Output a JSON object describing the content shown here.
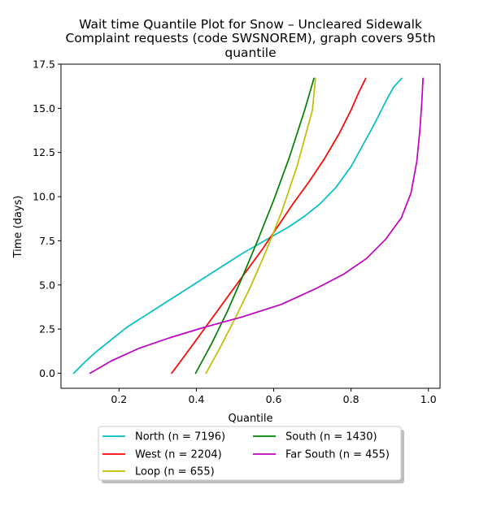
{
  "chart_data": {
    "type": "line",
    "title_lines": [
      "Wait time Quantile Plot for Snow – Uncleared Sidewalk",
      "Complaint  requests (code SWSNOREM), graph covers 95th",
      "quantile"
    ],
    "xlabel": "Quantile",
    "ylabel": "Time (days)",
    "xlim": [
      0.05,
      1.03
    ],
    "ylim": [
      -0.85,
      17.5
    ],
    "xticks": [
      0.2,
      0.4,
      0.6,
      0.8,
      1.0
    ],
    "xtick_labels": [
      "0.2",
      "0.4",
      "0.6",
      "0.8",
      "1.0"
    ],
    "yticks": [
      0.0,
      2.5,
      5.0,
      7.5,
      10.0,
      12.5,
      15.0,
      17.5
    ],
    "ytick_labels": [
      "0.0",
      "2.5",
      "5.0",
      "7.5",
      "10.0",
      "12.5",
      "15.0",
      "17.5"
    ],
    "grid": false,
    "legend_location": "below",
    "series": [
      {
        "name": "North (n = 7196)",
        "color": "#00bfbf",
        "x": [
          0.083,
          0.11,
          0.14,
          0.18,
          0.22,
          0.27,
          0.32,
          0.37,
          0.42,
          0.47,
          0.52,
          0.56,
          0.6,
          0.64,
          0.68,
          0.72,
          0.76,
          0.8,
          0.83,
          0.86,
          0.89,
          0.91,
          0.931
        ],
        "y": [
          0.0,
          0.6,
          1.2,
          1.9,
          2.6,
          3.3,
          4.0,
          4.7,
          5.4,
          6.1,
          6.8,
          7.3,
          7.8,
          8.3,
          8.9,
          9.6,
          10.5,
          11.7,
          12.9,
          14.1,
          15.4,
          16.2,
          16.7
        ]
      },
      {
        "name": "West (n = 2204)",
        "color": "#ff0000",
        "x": [
          0.336,
          0.37,
          0.41,
          0.45,
          0.49,
          0.53,
          0.57,
          0.61,
          0.65,
          0.69,
          0.73,
          0.77,
          0.8,
          0.82,
          0.838
        ],
        "y": [
          0.0,
          1.0,
          2.2,
          3.4,
          4.6,
          5.8,
          7.0,
          8.3,
          9.6,
          10.8,
          12.1,
          13.6,
          14.9,
          15.9,
          16.7
        ]
      },
      {
        "name": "Loop (n = 655)",
        "color": "#bfbf00",
        "x": [
          0.425,
          0.46,
          0.5,
          0.54,
          0.58,
          0.62,
          0.66,
          0.7,
          0.708
        ],
        "y": [
          0.0,
          1.4,
          3.1,
          4.9,
          6.9,
          9.1,
          11.7,
          14.9,
          16.7
        ]
      },
      {
        "name": "South (n = 1430)",
        "color": "#008000",
        "x": [
          0.398,
          0.44,
          0.48,
          0.52,
          0.56,
          0.6,
          0.64,
          0.68,
          0.704
        ],
        "y": [
          0.0,
          1.7,
          3.5,
          5.5,
          7.6,
          9.8,
          12.2,
          14.9,
          16.7
        ]
      },
      {
        "name": "Far South (n = 455)",
        "color": "#bf00bf",
        "x": [
          0.125,
          0.18,
          0.25,
          0.33,
          0.42,
          0.52,
          0.62,
          0.71,
          0.78,
          0.84,
          0.89,
          0.93,
          0.955,
          0.97,
          0.978,
          0.983,
          0.986
        ],
        "y": [
          0.0,
          0.7,
          1.4,
          2.0,
          2.6,
          3.2,
          3.9,
          4.8,
          5.6,
          6.5,
          7.6,
          8.8,
          10.2,
          12.0,
          13.8,
          15.4,
          16.7
        ]
      }
    ]
  }
}
